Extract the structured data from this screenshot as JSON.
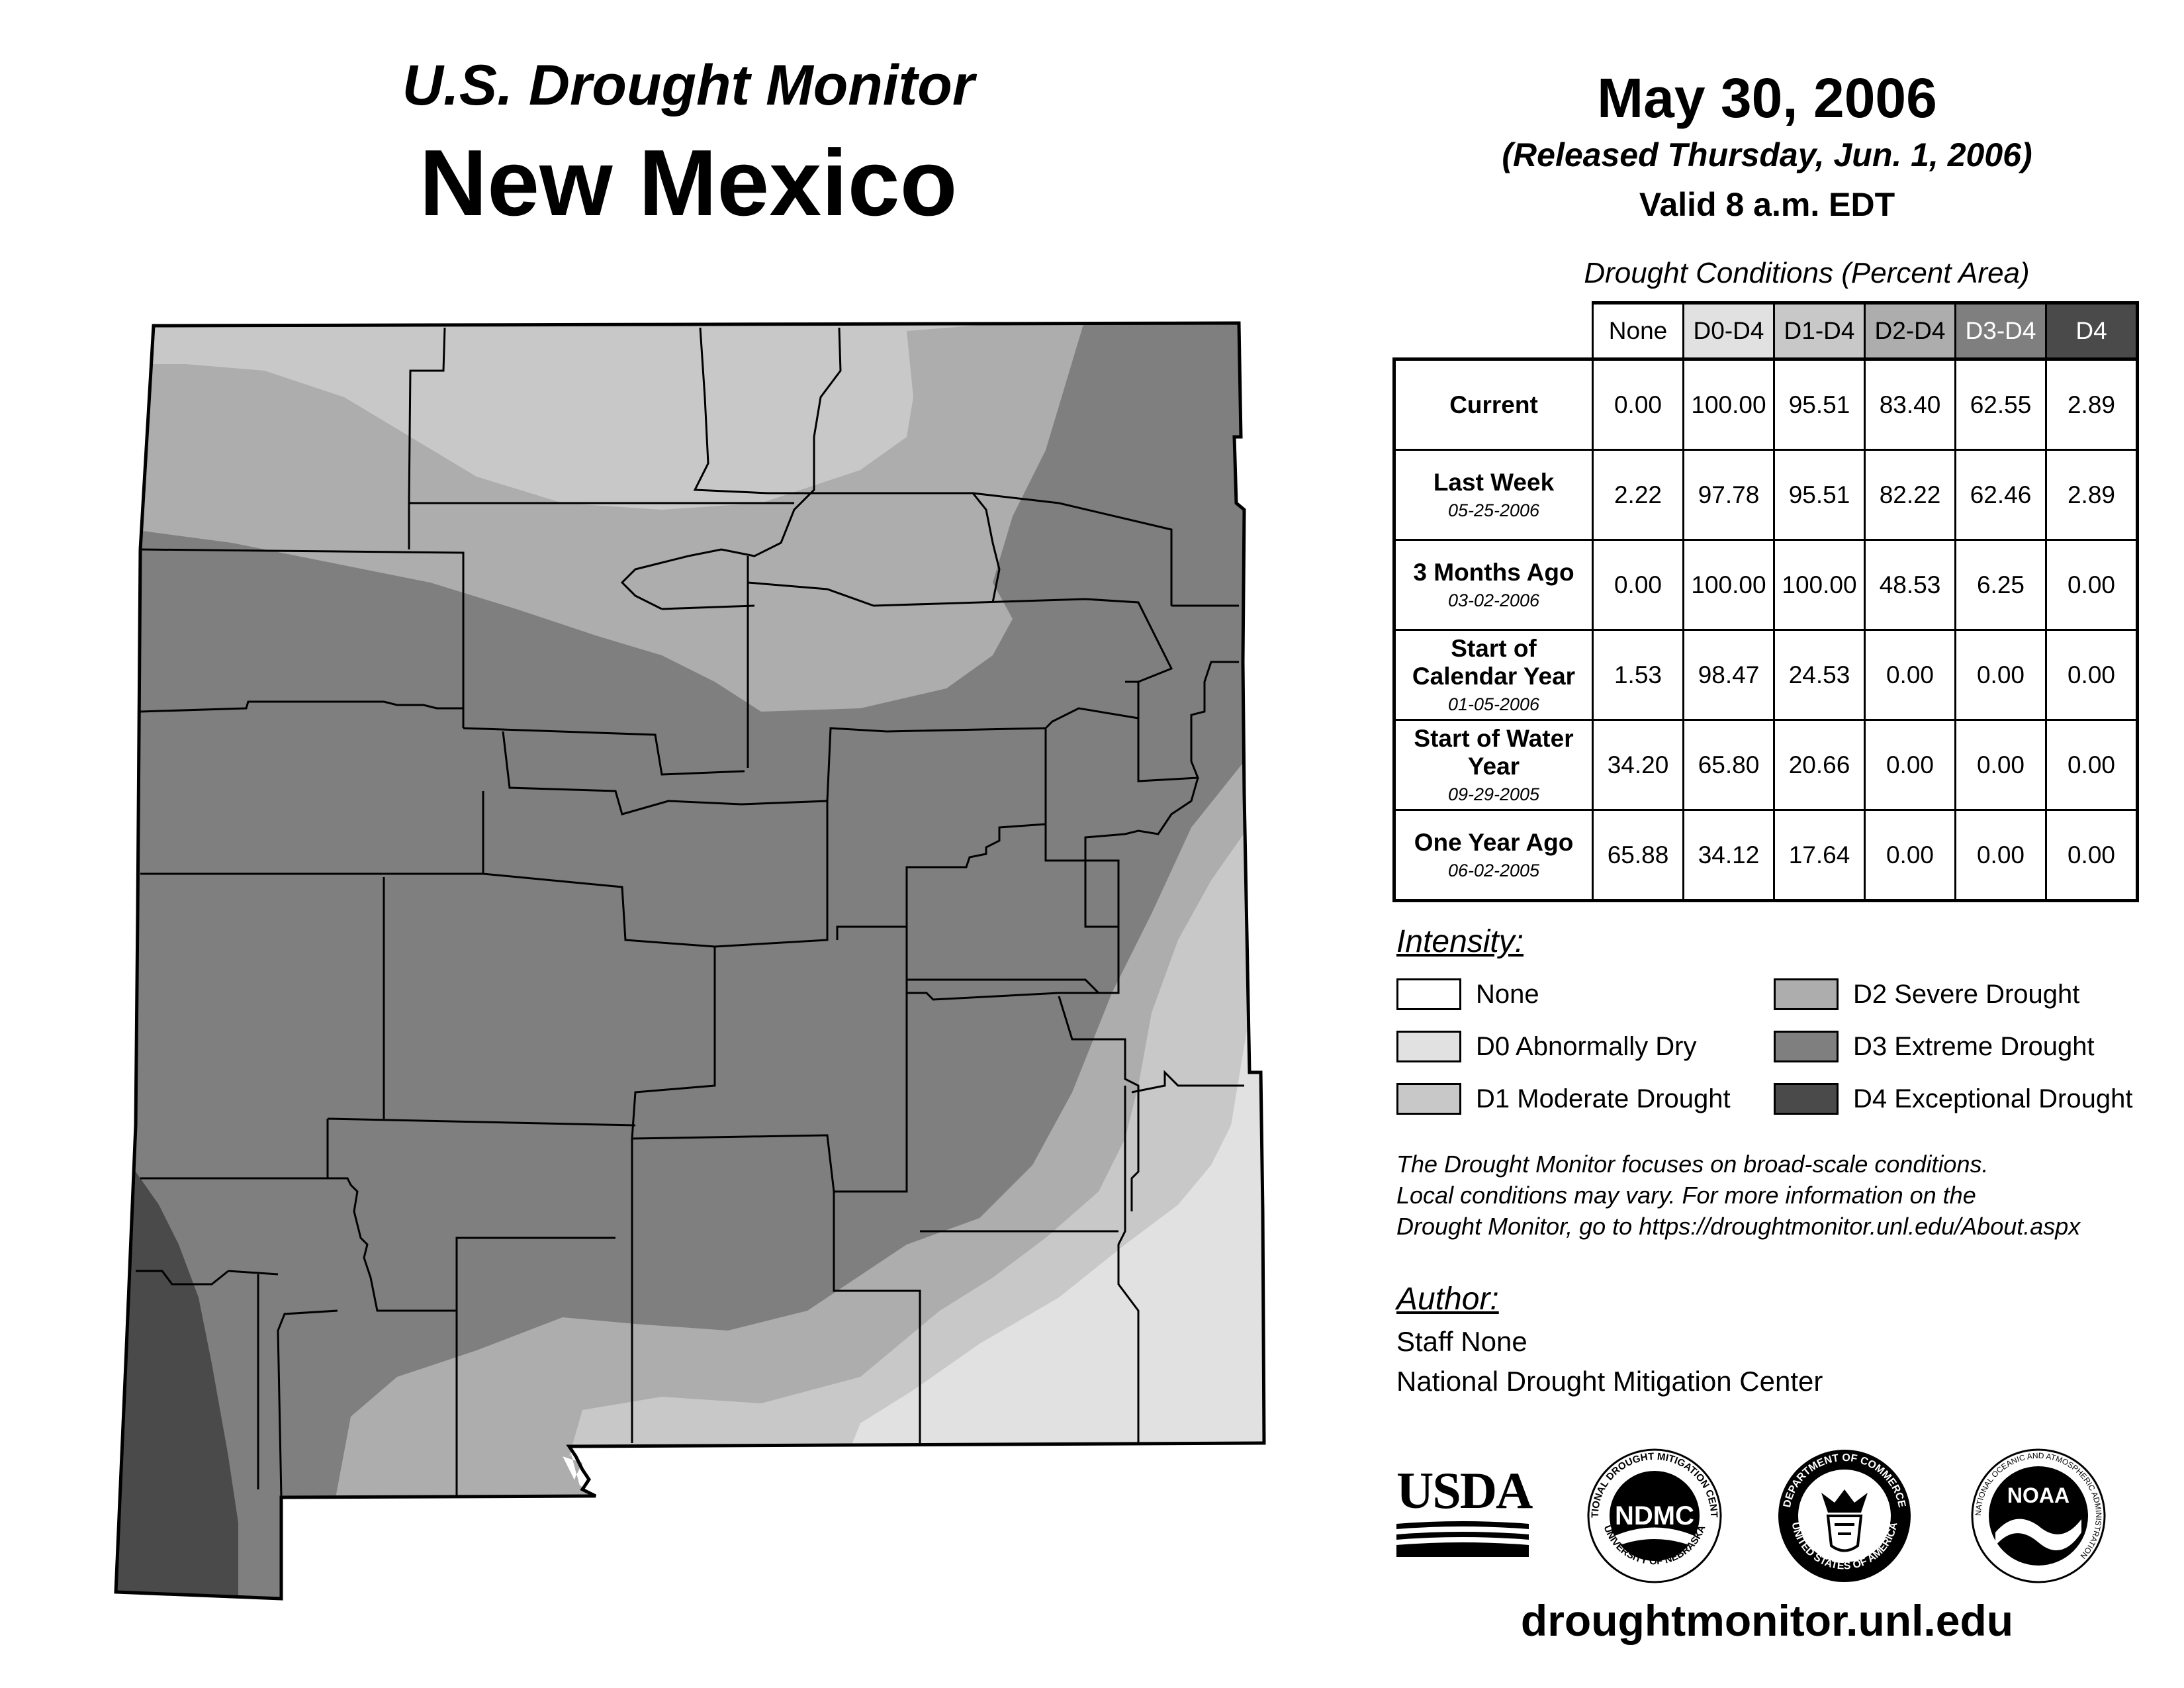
{
  "header": {
    "title": "U.S. Drought Monitor",
    "state": "New Mexico",
    "date": "May 30, 2006",
    "released": "(Released Thursday, Jun. 1, 2006)",
    "valid": "Valid 8 a.m. EDT"
  },
  "table": {
    "caption": "Drought Conditions (Percent Area)",
    "columns": [
      "None",
      "D0-D4",
      "D1-D4",
      "D2-D4",
      "D3-D4",
      "D4"
    ],
    "rows": [
      {
        "label": "Current",
        "sub": "",
        "values": [
          "0.00",
          "100.00",
          "95.51",
          "83.40",
          "62.55",
          "2.89"
        ]
      },
      {
        "label": "Last Week",
        "sub": "05-25-2006",
        "values": [
          "2.22",
          "97.78",
          "95.51",
          "82.22",
          "62.46",
          "2.89"
        ]
      },
      {
        "label": "3 Months Ago",
        "sub": "03-02-2006",
        "values": [
          "0.00",
          "100.00",
          "100.00",
          "48.53",
          "6.25",
          "0.00"
        ]
      },
      {
        "label": "Start of Calendar Year",
        "sub": "01-05-2006",
        "values": [
          "1.53",
          "98.47",
          "24.53",
          "0.00",
          "0.00",
          "0.00"
        ]
      },
      {
        "label": "Start of Water Year",
        "sub": "09-29-2005",
        "values": [
          "34.20",
          "65.80",
          "20.66",
          "0.00",
          "0.00",
          "0.00"
        ]
      },
      {
        "label": "One Year Ago",
        "sub": "06-02-2005",
        "values": [
          "65.88",
          "34.12",
          "17.64",
          "0.00",
          "0.00",
          "0.00"
        ]
      }
    ]
  },
  "legend": {
    "heading": "Intensity:",
    "items": [
      {
        "label": "None",
        "color": "#ffffff"
      },
      {
        "label": "D0 Abnormally Dry",
        "color": "#e1e1e1"
      },
      {
        "label": "D1 Moderate Drought",
        "color": "#c8c8c8"
      },
      {
        "label": "D2 Severe Drought",
        "color": "#adadad"
      },
      {
        "label": "D3 Extreme Drought",
        "color": "#7f7f7f"
      },
      {
        "label": "D4 Exceptional Drought",
        "color": "#4a4a4a"
      }
    ]
  },
  "note": {
    "line1": "The Drought Monitor focuses on broad-scale conditions.",
    "line2": "Local conditions may vary. For more information on the",
    "line3": "Drought Monitor, go to https://droughtmonitor.unl.edu/About.aspx"
  },
  "author": {
    "heading": "Author:",
    "name": "Staff None",
    "org": "National Drought Mitigation Center"
  },
  "logos": {
    "usda": "USDA",
    "ndmc": "NDMC",
    "ndmc_top": "NATIONAL DROUGHT MITIGATION CENTER",
    "ndmc_bottom": "UNIVERSITY OF NEBRASKA",
    "doc_top": "DEPARTMENT OF COMMERCE",
    "doc_bottom": "UNITED STATES OF AMERICA",
    "noaa": "NOAA",
    "noaa_ring": "NATIONAL OCEANIC AND ATMOSPHERIC ADMINISTRATION"
  },
  "url": "droughtmonitor.unl.edu"
}
